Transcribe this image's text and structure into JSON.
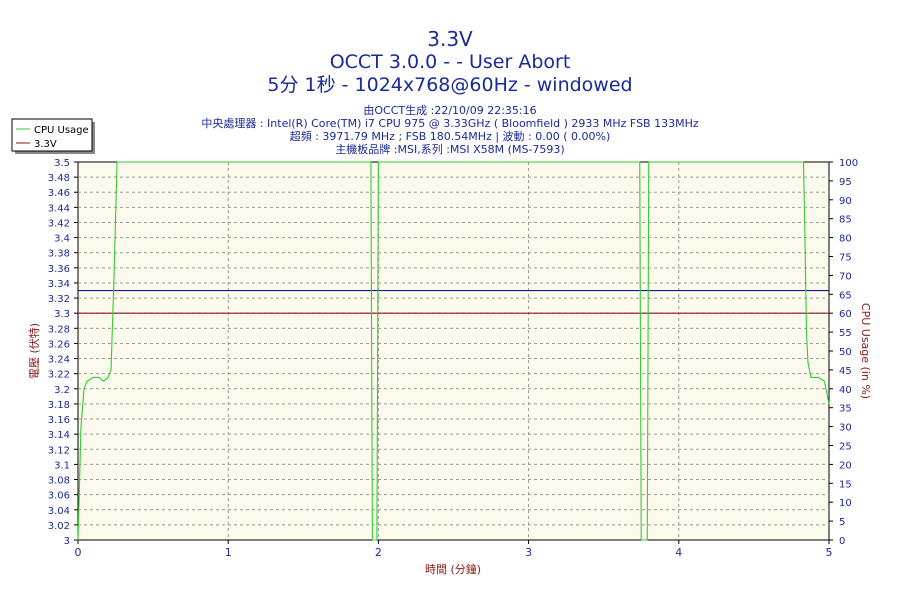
{
  "chart_data": {
    "type": "line",
    "title": "3.3V",
    "subtitle_lines": [
      "OCCT 3.0.0 -  - User Abort",
      "5分 1秒 - 1024x768@60Hz - windowed"
    ],
    "info_lines": [
      "由OCCT生成 :22/10/09 22:35:16",
      "中央處理器 : Intel(R) Core(TM) i7 CPU 975 @ 3.33GHz ( Bloomfield ) 2933 MHz FSB 133MHz",
      "超頻 : 3971.79 MHz ; FSB 180.54MHz | 波動 : 0.00 ( 0.00%)",
      "主機板品牌 :MSI,系列 :MSI X58M (MS-7593)"
    ],
    "xlabel": "時間 (分鐘)",
    "ylabel_left": "電壓 (伏特)",
    "ylabel_right": "CPU Usage (in %)",
    "xlim": [
      0,
      5
    ],
    "ylim_left": [
      3.0,
      3.5
    ],
    "ylim_right": [
      0,
      100
    ],
    "x_ticks": [
      "0",
      "1",
      "2",
      "3",
      "4",
      "5"
    ],
    "y_ticks_left": [
      "3",
      "3.02",
      "3.04",
      "3.06",
      "3.08",
      "3.1",
      "3.12",
      "3.14",
      "3.16",
      "3.18",
      "3.2",
      "3.22",
      "3.24",
      "3.26",
      "3.28",
      "3.3",
      "3.32",
      "3.34",
      "3.36",
      "3.38",
      "3.4",
      "3.42",
      "3.44",
      "3.46",
      "3.48",
      "3.5"
    ],
    "y_ticks_right": [
      "0",
      "5",
      "10",
      "15",
      "20",
      "25",
      "30",
      "35",
      "40",
      "45",
      "50",
      "55",
      "60",
      "65",
      "70",
      "75",
      "80",
      "85",
      "90",
      "95",
      "100"
    ],
    "grid": true,
    "legend_position": "top-left",
    "series": [
      {
        "name": "CPU Usage",
        "axis": "right",
        "color": "#33cc33",
        "points": [
          [
            0.0,
            0
          ],
          [
            0.02,
            30
          ],
          [
            0.04,
            40
          ],
          [
            0.06,
            42
          ],
          [
            0.1,
            43
          ],
          [
            0.14,
            43
          ],
          [
            0.17,
            42
          ],
          [
            0.2,
            43
          ],
          [
            0.22,
            45
          ],
          [
            0.24,
            70
          ],
          [
            0.26,
            100
          ],
          [
            1.95,
            100
          ],
          [
            1.96,
            0
          ],
          [
            1.99,
            0
          ],
          [
            2.0,
            100
          ],
          [
            3.74,
            100
          ],
          [
            3.75,
            0
          ],
          [
            3.79,
            0
          ],
          [
            3.8,
            100
          ],
          [
            4.83,
            100
          ],
          [
            4.84,
            80
          ],
          [
            4.85,
            55
          ],
          [
            4.86,
            47
          ],
          [
            4.88,
            43
          ],
          [
            4.93,
            43
          ],
          [
            4.97,
            42
          ],
          [
            5.0,
            36
          ]
        ]
      },
      {
        "name": "3.3V",
        "axis": "left",
        "color": "#8b1a1a",
        "points": [
          [
            0,
            3.3
          ],
          [
            5,
            3.3
          ]
        ]
      },
      {
        "name": "",
        "axis": "left",
        "color": "#1a1a8b",
        "points": [
          [
            0,
            3.33
          ],
          [
            5,
            3.33
          ]
        ]
      }
    ]
  }
}
